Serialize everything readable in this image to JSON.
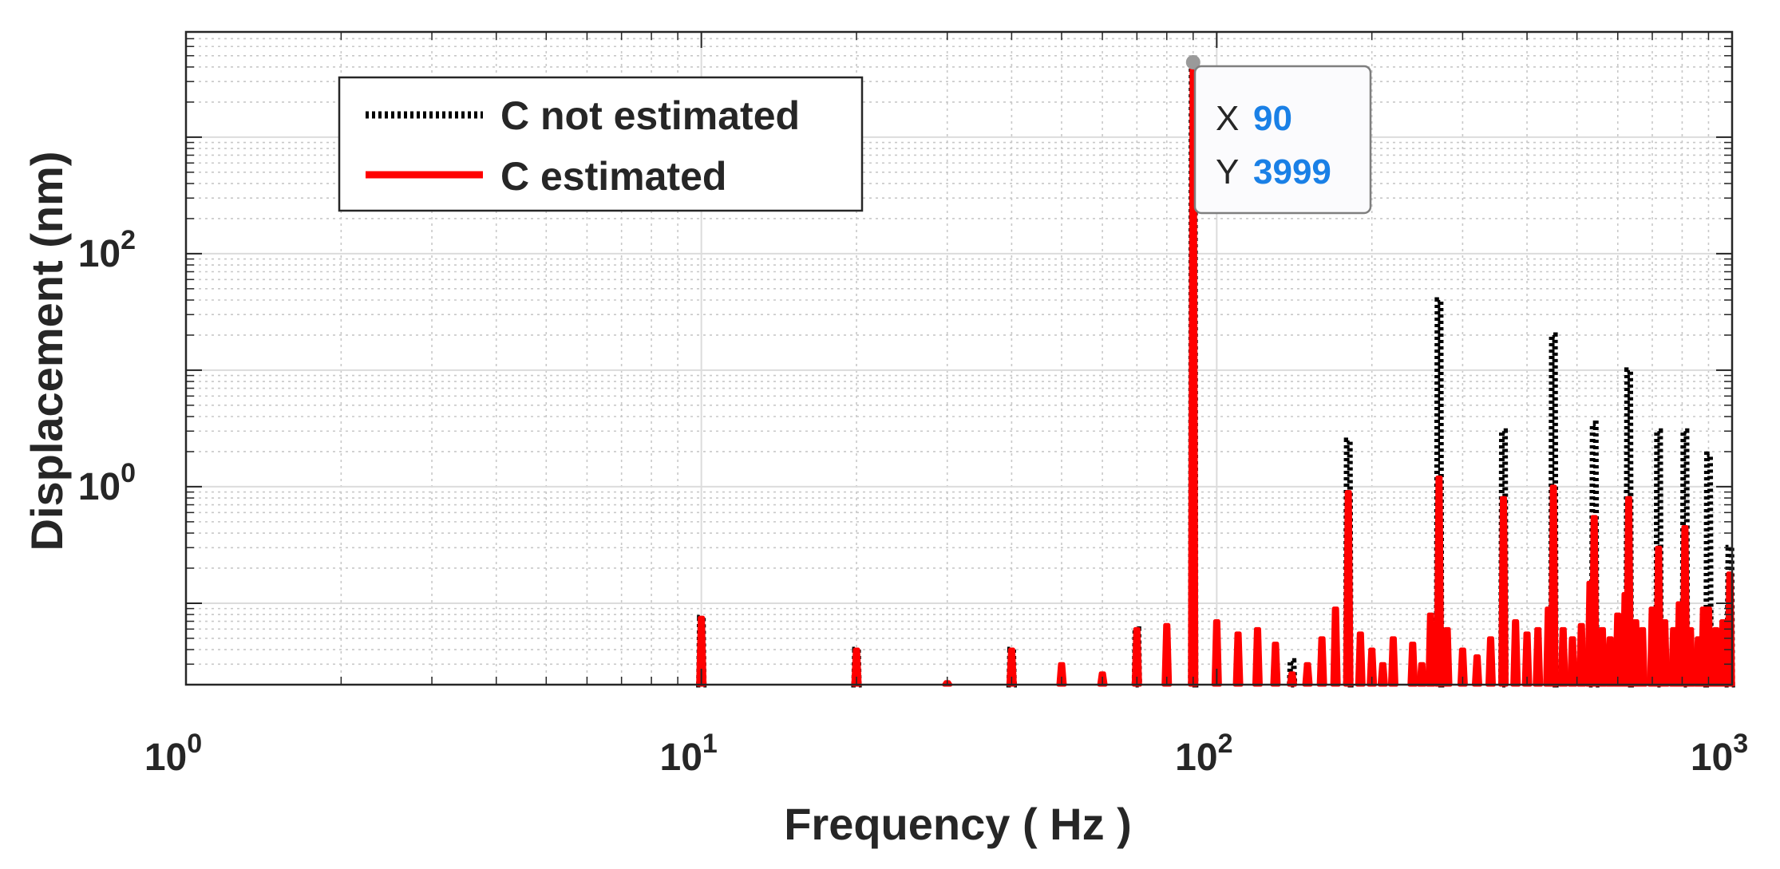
{
  "chart_data": {
    "type": "line",
    "xscale": "log",
    "yscale": "log",
    "xlabel": "Frequency ( Hz )",
    "ylabel": "Displacement (nm)",
    "xlim": [
      1,
      1000
    ],
    "ylim": [
      0.02,
      8000
    ],
    "grid": true,
    "minor_grid": true,
    "x_ticks": [
      {
        "value": 1,
        "base": "10",
        "exp": "0"
      },
      {
        "value": 10,
        "base": "10",
        "exp": "1"
      },
      {
        "value": 100,
        "base": "10",
        "exp": "2"
      },
      {
        "value": 1000,
        "base": "10",
        "exp": "3"
      }
    ],
    "y_ticks": [
      {
        "value": 1,
        "base": "10",
        "exp": "0"
      },
      {
        "value": 100,
        "base": "10",
        "exp": "2"
      }
    ],
    "legend": {
      "position": "top-left",
      "entries": [
        {
          "label": "C not estimated",
          "color": "#000000",
          "style": "dotted"
        },
        {
          "label": "C estimated",
          "color": "#ff0000",
          "style": "solid"
        }
      ]
    },
    "series": [
      {
        "name": "C not estimated",
        "color": "#000000",
        "style": "dotted",
        "peaks": [
          {
            "x": 10,
            "y": 0.075
          },
          {
            "x": 20,
            "y": 0.04
          },
          {
            "x": 40,
            "y": 0.04
          },
          {
            "x": 70,
            "y": 0.06
          },
          {
            "x": 90,
            "y": 3999
          },
          {
            "x": 140,
            "y": 0.032
          },
          {
            "x": 180,
            "y": 2.5
          },
          {
            "x": 270,
            "y": 40
          },
          {
            "x": 360,
            "y": 3.0
          },
          {
            "x": 450,
            "y": 20
          },
          {
            "x": 540,
            "y": 3.5
          },
          {
            "x": 630,
            "y": 10
          },
          {
            "x": 720,
            "y": 3.0
          },
          {
            "x": 810,
            "y": 3.0
          },
          {
            "x": 900,
            "y": 1.9
          },
          {
            "x": 990,
            "y": 0.3
          }
        ]
      },
      {
        "name": "C estimated",
        "color": "#ff0000",
        "style": "solid",
        "peaks": [
          {
            "x": 10,
            "y": 0.075
          },
          {
            "x": 20,
            "y": 0.04
          },
          {
            "x": 30,
            "y": 0.021
          },
          {
            "x": 40,
            "y": 0.04
          },
          {
            "x": 50,
            "y": 0.03
          },
          {
            "x": 60,
            "y": 0.025
          },
          {
            "x": 70,
            "y": 0.06
          },
          {
            "x": 80,
            "y": 0.065
          },
          {
            "x": 90,
            "y": 3999
          },
          {
            "x": 100,
            "y": 0.07
          },
          {
            "x": 110,
            "y": 0.055
          },
          {
            "x": 120,
            "y": 0.06
          },
          {
            "x": 130,
            "y": 0.045
          },
          {
            "x": 140,
            "y": 0.025
          },
          {
            "x": 150,
            "y": 0.03
          },
          {
            "x": 160,
            "y": 0.05
          },
          {
            "x": 170,
            "y": 0.09
          },
          {
            "x": 180,
            "y": 0.9
          },
          {
            "x": 190,
            "y": 0.055
          },
          {
            "x": 200,
            "y": 0.04
          },
          {
            "x": 210,
            "y": 0.03
          },
          {
            "x": 220,
            "y": 0.05
          },
          {
            "x": 240,
            "y": 0.045
          },
          {
            "x": 250,
            "y": 0.03
          },
          {
            "x": 260,
            "y": 0.08
          },
          {
            "x": 270,
            "y": 1.2
          },
          {
            "x": 280,
            "y": 0.06
          },
          {
            "x": 300,
            "y": 0.04
          },
          {
            "x": 320,
            "y": 0.035
          },
          {
            "x": 340,
            "y": 0.05
          },
          {
            "x": 360,
            "y": 0.8
          },
          {
            "x": 380,
            "y": 0.07
          },
          {
            "x": 400,
            "y": 0.055
          },
          {
            "x": 420,
            "y": 0.06
          },
          {
            "x": 440,
            "y": 0.09
          },
          {
            "x": 450,
            "y": 1.0
          },
          {
            "x": 470,
            "y": 0.06
          },
          {
            "x": 490,
            "y": 0.05
          },
          {
            "x": 510,
            "y": 0.065
          },
          {
            "x": 530,
            "y": 0.15
          },
          {
            "x": 540,
            "y": 0.55
          },
          {
            "x": 560,
            "y": 0.06
          },
          {
            "x": 580,
            "y": 0.05
          },
          {
            "x": 600,
            "y": 0.08
          },
          {
            "x": 620,
            "y": 0.12
          },
          {
            "x": 630,
            "y": 0.8
          },
          {
            "x": 650,
            "y": 0.07
          },
          {
            "x": 670,
            "y": 0.06
          },
          {
            "x": 700,
            "y": 0.09
          },
          {
            "x": 720,
            "y": 0.3
          },
          {
            "x": 740,
            "y": 0.07
          },
          {
            "x": 770,
            "y": 0.06
          },
          {
            "x": 790,
            "y": 0.1
          },
          {
            "x": 810,
            "y": 0.45
          },
          {
            "x": 830,
            "y": 0.06
          },
          {
            "x": 860,
            "y": 0.05
          },
          {
            "x": 880,
            "y": 0.09
          },
          {
            "x": 900,
            "y": 0.09
          },
          {
            "x": 930,
            "y": 0.06
          },
          {
            "x": 960,
            "y": 0.07
          },
          {
            "x": 990,
            "y": 0.18
          }
        ]
      }
    ],
    "datatip": {
      "x_label": "X",
      "x_value": "90",
      "y_label": "Y",
      "y_value": "3999"
    }
  }
}
